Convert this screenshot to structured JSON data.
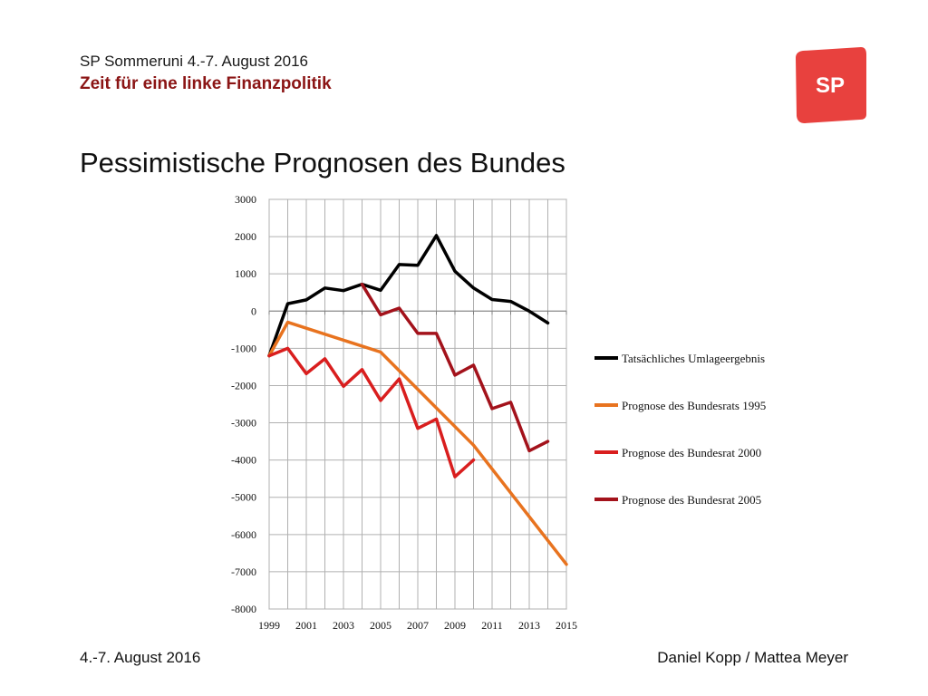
{
  "header": {
    "event": "SP Sommeruni 4.-7. August 2016",
    "subtitle": "Zeit für eine linke Finanzpolitik"
  },
  "logo": {
    "text": "SP",
    "color": "#e8413e"
  },
  "slide": {
    "title": "Pessimistische Prognosen des Bundes"
  },
  "footer": {
    "date": "4.-7. August 2016",
    "authors": "Daniel Kopp / Mattea Meyer"
  },
  "chart_data": {
    "type": "line",
    "title": "",
    "xlabel": "",
    "ylabel": "",
    "xlim": [
      1999,
      2015
    ],
    "ylim": [
      -8000,
      3000
    ],
    "x_ticks": [
      "1999",
      "2001",
      "2003",
      "2005",
      "2007",
      "2009",
      "2011",
      "2013",
      "2015"
    ],
    "y_ticks": [
      "3000",
      "2000",
      "1000",
      "0",
      "-1000",
      "-2000",
      "-3000",
      "-4000",
      "-5000",
      "-6000",
      "-7000",
      "-8000"
    ],
    "grid": true,
    "legend_position": "right",
    "series": [
      {
        "name": "Tatsächliches Umlageergebnis",
        "color": "#000000",
        "x": [
          1999,
          2000,
          2001,
          2002,
          2003,
          2004,
          2005,
          2006,
          2007,
          2008,
          2009,
          2010,
          2011,
          2012,
          2013,
          2014
        ],
        "values": [
          -1200,
          200,
          300,
          620,
          550,
          720,
          560,
          1250,
          1230,
          2030,
          1070,
          620,
          310,
          260,
          0,
          -320
        ]
      },
      {
        "name": "Prognose des Bundesrats 1995",
        "color": "#e8731f",
        "x": [
          1999,
          2000,
          2005,
          2010,
          2015
        ],
        "values": [
          -1200,
          -300,
          -1100,
          -3600,
          -6800
        ]
      },
      {
        "name": "Prognose des Bundesrat 2000",
        "color": "#d91e1e",
        "x": [
          1999,
          2000,
          2001,
          2002,
          2003,
          2004,
          2005,
          2006,
          2007,
          2008,
          2009,
          2010
        ],
        "values": [
          -1200,
          -1000,
          -1680,
          -1280,
          -2020,
          -1570,
          -2400,
          -1820,
          -3150,
          -2900,
          -4450,
          -4000
        ]
      },
      {
        "name": "Prognose des Bundesrat 2005",
        "color": "#a3121b",
        "x": [
          2004,
          2005,
          2006,
          2007,
          2008,
          2009,
          2010,
          2011,
          2012,
          2013,
          2014
        ],
        "values": [
          720,
          -100,
          80,
          -600,
          -600,
          -1720,
          -1450,
          -2620,
          -2450,
          -3750,
          -3500
        ]
      }
    ]
  }
}
